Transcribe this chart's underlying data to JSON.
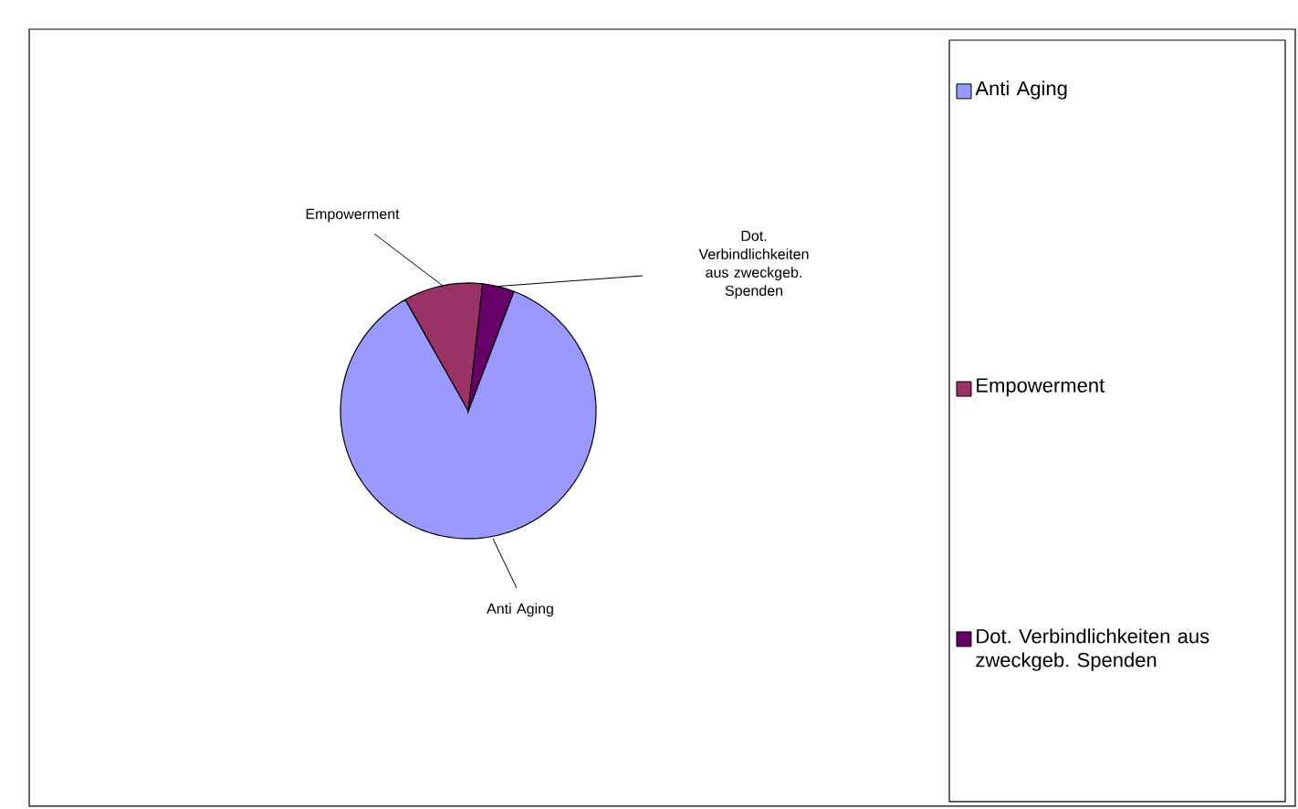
{
  "chart_data": {
    "type": "pie",
    "categories": [
      "Anti Aging",
      "Empowerment",
      "Dot. Verbindlichkeiten aus zweckgeb. Spenden"
    ],
    "values": [
      86,
      10,
      4
    ],
    "colors": [
      "#9999ff",
      "#993366",
      "#660066"
    ],
    "legend": "right"
  }
}
